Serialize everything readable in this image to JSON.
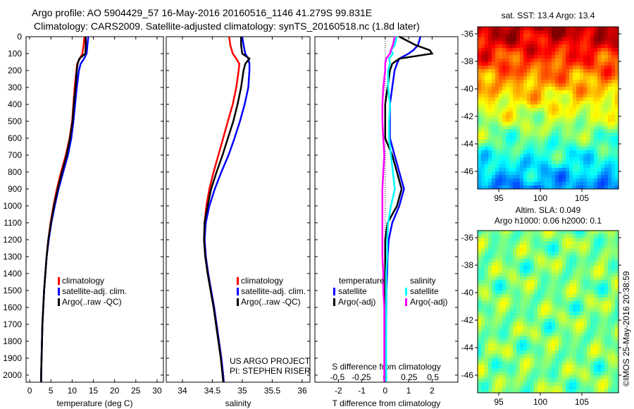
{
  "title": {
    "line1": "Argo profile: AO 5904429_57 16-May-2016 20160516_1146 41.279S 99.831E",
    "line2": "Climatology: CARS2009. Satellite-adjusted climatology: synTS_20160518.nc (1.8d later)"
  },
  "colors": {
    "climatology": "#ff0000",
    "satellite": "#0000ff",
    "argo": "#000000",
    "s_satellite": "#00ffff",
    "s_argo": "#ff00ff"
  },
  "credit": "US ARGO PROJECT",
  "pi": "PI: STEPHEN RISER",
  "timestamp": "©IMOS 25-May-2016 20:38:59",
  "chart_data": [
    {
      "type": "line",
      "xlabel": "temperature (deg C)",
      "ylim": [
        0,
        2042
      ],
      "xlim": [
        -0.85,
        31.5
      ],
      "xticks": [
        0,
        5,
        10,
        15,
        20,
        25,
        30
      ],
      "yticks": [
        0,
        100,
        200,
        300,
        400,
        500,
        600,
        700,
        800,
        900,
        1000,
        1100,
        1200,
        1300,
        1400,
        1500,
        1600,
        1700,
        1800,
        1900,
        2000
      ],
      "legend": [
        "climatology",
        "satellite-adj. clim.",
        "Argo(..raw -QC)"
      ],
      "depth": [
        0,
        50,
        100,
        130,
        160,
        200,
        300,
        400,
        500,
        600,
        700,
        800,
        900,
        1000,
        1100,
        1200,
        1300,
        1400,
        1500,
        1600,
        1700,
        1800,
        1900,
        2000,
        2040
      ],
      "series": [
        {
          "name": "climatology",
          "color": "#ff0000",
          "values": [
            12.9,
            12.7,
            12.4,
            11.8,
            11.2,
            11.0,
            10.6,
            10.3,
            10.0,
            9.4,
            8.5,
            7.4,
            6.4,
            5.6,
            4.9,
            4.4,
            4.0,
            3.7,
            3.4,
            3.2,
            3.0,
            2.9,
            2.8,
            2.7,
            2.7
          ]
        },
        {
          "name": "satellite-adj. clim.",
          "color": "#0000ff",
          "values": [
            13.8,
            13.6,
            13.4,
            12.8,
            12.0,
            11.6,
            11.1,
            10.7,
            10.3,
            9.8,
            9.0,
            7.9,
            6.8,
            5.9,
            5.1,
            4.5,
            4.0,
            3.7,
            3.4,
            3.2,
            3.0,
            2.9,
            2.8,
            2.7,
            2.7
          ]
        },
        {
          "name": "Argo(..raw -QC)",
          "color": "#000000",
          "values": [
            13.2,
            13.2,
            13.1,
            11.7,
            11.3,
            11.1,
            10.8,
            10.4,
            10.1,
            9.5,
            8.7,
            7.6,
            6.6,
            5.7,
            5.0,
            4.4,
            4.0,
            3.7,
            3.4,
            3.2,
            3.0,
            2.9,
            2.8,
            2.7,
            2.7
          ]
        }
      ]
    },
    {
      "type": "line",
      "xlabel": "salinity",
      "xlim": [
        33.73,
        36.13
      ],
      "xticks": [
        34,
        34.5,
        35,
        35.5,
        36
      ],
      "legend": [
        "climatology",
        "satellite-adj. clim.",
        "Argo(..raw -QC)"
      ],
      "depth": [
        0,
        50,
        100,
        130,
        160,
        200,
        300,
        400,
        500,
        600,
        700,
        800,
        900,
        1000,
        1100,
        1200,
        1300,
        1400,
        1500,
        1600,
        1700,
        1800,
        1900,
        2000,
        2040
      ],
      "series": [
        {
          "name": "climatology",
          "color": "#ff0000",
          "values": [
            34.78,
            34.8,
            34.84,
            34.9,
            34.95,
            34.94,
            34.9,
            34.84,
            34.76,
            34.68,
            34.6,
            34.52,
            34.45,
            34.4,
            34.37,
            34.37,
            34.39,
            34.43,
            34.48,
            34.53,
            34.57,
            34.61,
            34.65,
            34.68,
            34.69
          ]
        },
        {
          "name": "satellite-adj. clim.",
          "color": "#0000ff",
          "values": [
            35.0,
            35.02,
            35.05,
            35.1,
            35.12,
            35.12,
            35.1,
            35.04,
            34.96,
            34.87,
            34.77,
            34.65,
            34.54,
            34.45,
            34.39,
            34.37,
            34.39,
            34.43,
            34.48,
            34.53,
            34.57,
            34.61,
            34.65,
            34.68,
            34.69
          ]
        },
        {
          "name": "Argo(..raw -QC)",
          "color": "#000000",
          "values": [
            34.98,
            34.98,
            35.0,
            35.12,
            35.05,
            35.02,
            34.98,
            34.92,
            34.85,
            34.76,
            34.67,
            34.57,
            34.48,
            34.42,
            34.37,
            34.36,
            34.38,
            34.42,
            34.47,
            34.52,
            34.56,
            34.6,
            34.64,
            34.67,
            34.68
          ]
        }
      ]
    },
    {
      "type": "line",
      "xlabel": "T difference from climatology",
      "slabel": "S difference from climatology",
      "xlim": [
        -3.0,
        3.1
      ],
      "xticks": [
        -2,
        -1,
        0,
        1,
        2
      ],
      "sticks": [
        -0.5,
        -0.25,
        0,
        0.25,
        0.5
      ],
      "s_per_t": 0.245,
      "legend_headers": [
        "temperature",
        "salinity"
      ],
      "legend": [
        "satellite",
        "Argo(-adj)",
        "satellite",
        "Argo(-adj)"
      ],
      "depth": [
        0,
        50,
        80,
        100,
        130,
        160,
        200,
        300,
        400,
        500,
        600,
        700,
        800,
        900,
        1000,
        1100,
        1200,
        1300,
        1400,
        1500,
        1600,
        1700,
        1800,
        1900,
        2000,
        2040
      ],
      "series": [
        {
          "name": "T satellite",
          "unit": "T",
          "color": "#0000ff",
          "values": [
            1.5,
            1.4,
            1.2,
            1.0,
            0.6,
            0.5,
            0.4,
            0.3,
            0.2,
            0.2,
            0.2,
            0.4,
            0.6,
            0.8,
            0.6,
            0.3,
            0.15,
            0.1,
            0.08,
            0.05,
            0.05,
            0.04,
            0.03,
            0.02,
            0.02,
            0.02
          ]
        },
        {
          "name": "T Argo(-adj)",
          "unit": "T",
          "color": "#000000",
          "values": [
            0.6,
            1.3,
            1.9,
            2.0,
            0.6,
            0.3,
            0.2,
            0.1,
            0.0,
            0.0,
            0.0,
            0.3,
            0.5,
            0.7,
            0.5,
            0.1,
            0.0,
            0.0,
            0.0,
            0.0,
            0.0,
            0.0,
            0.0,
            0.0,
            0.0,
            0.0
          ]
        },
        {
          "name": "S satellite",
          "unit": "S",
          "color": "#00ffff",
          "values": [
            0.12,
            0.1,
            0.06,
            0.08,
            0.04,
            0.05,
            0.03,
            0.03,
            0.05,
            0.04,
            0.04,
            0.06,
            0.08,
            0.1,
            0.06,
            0.03,
            0.02,
            0.02,
            0.01,
            0.01,
            0.01,
            0.01,
            0.01,
            0.01,
            0.01,
            0.01
          ]
        },
        {
          "name": "S Argo(-adj)",
          "unit": "S",
          "color": "#ff00ff",
          "values": [
            0.1,
            0.08,
            0.06,
            0.05,
            0.01,
            0.0,
            0.0,
            -0.02,
            -0.03,
            -0.03,
            -0.02,
            -0.01,
            -0.02,
            -0.03,
            -0.03,
            -0.03,
            -0.03,
            -0.03,
            -0.02,
            -0.02,
            -0.01,
            -0.01,
            -0.01,
            -0.01,
            -0.01,
            -0.01
          ]
        }
      ]
    },
    {
      "type": "heatmap",
      "title": "sat. SST: 13.4  Argo: 13.4",
      "xticks": [
        95,
        100,
        105
      ],
      "yticks": [
        -36,
        -38,
        -40,
        -42,
        -44,
        -46
      ]
    },
    {
      "type": "heatmap",
      "title1": "Altim. SLA: 0.049",
      "title2": "Argo h1000: 0.06  h2000: 0.1",
      "xticks": [
        95,
        100,
        105
      ],
      "yticks": [
        -36,
        -38,
        -40,
        -42,
        -44,
        -46
      ]
    }
  ]
}
